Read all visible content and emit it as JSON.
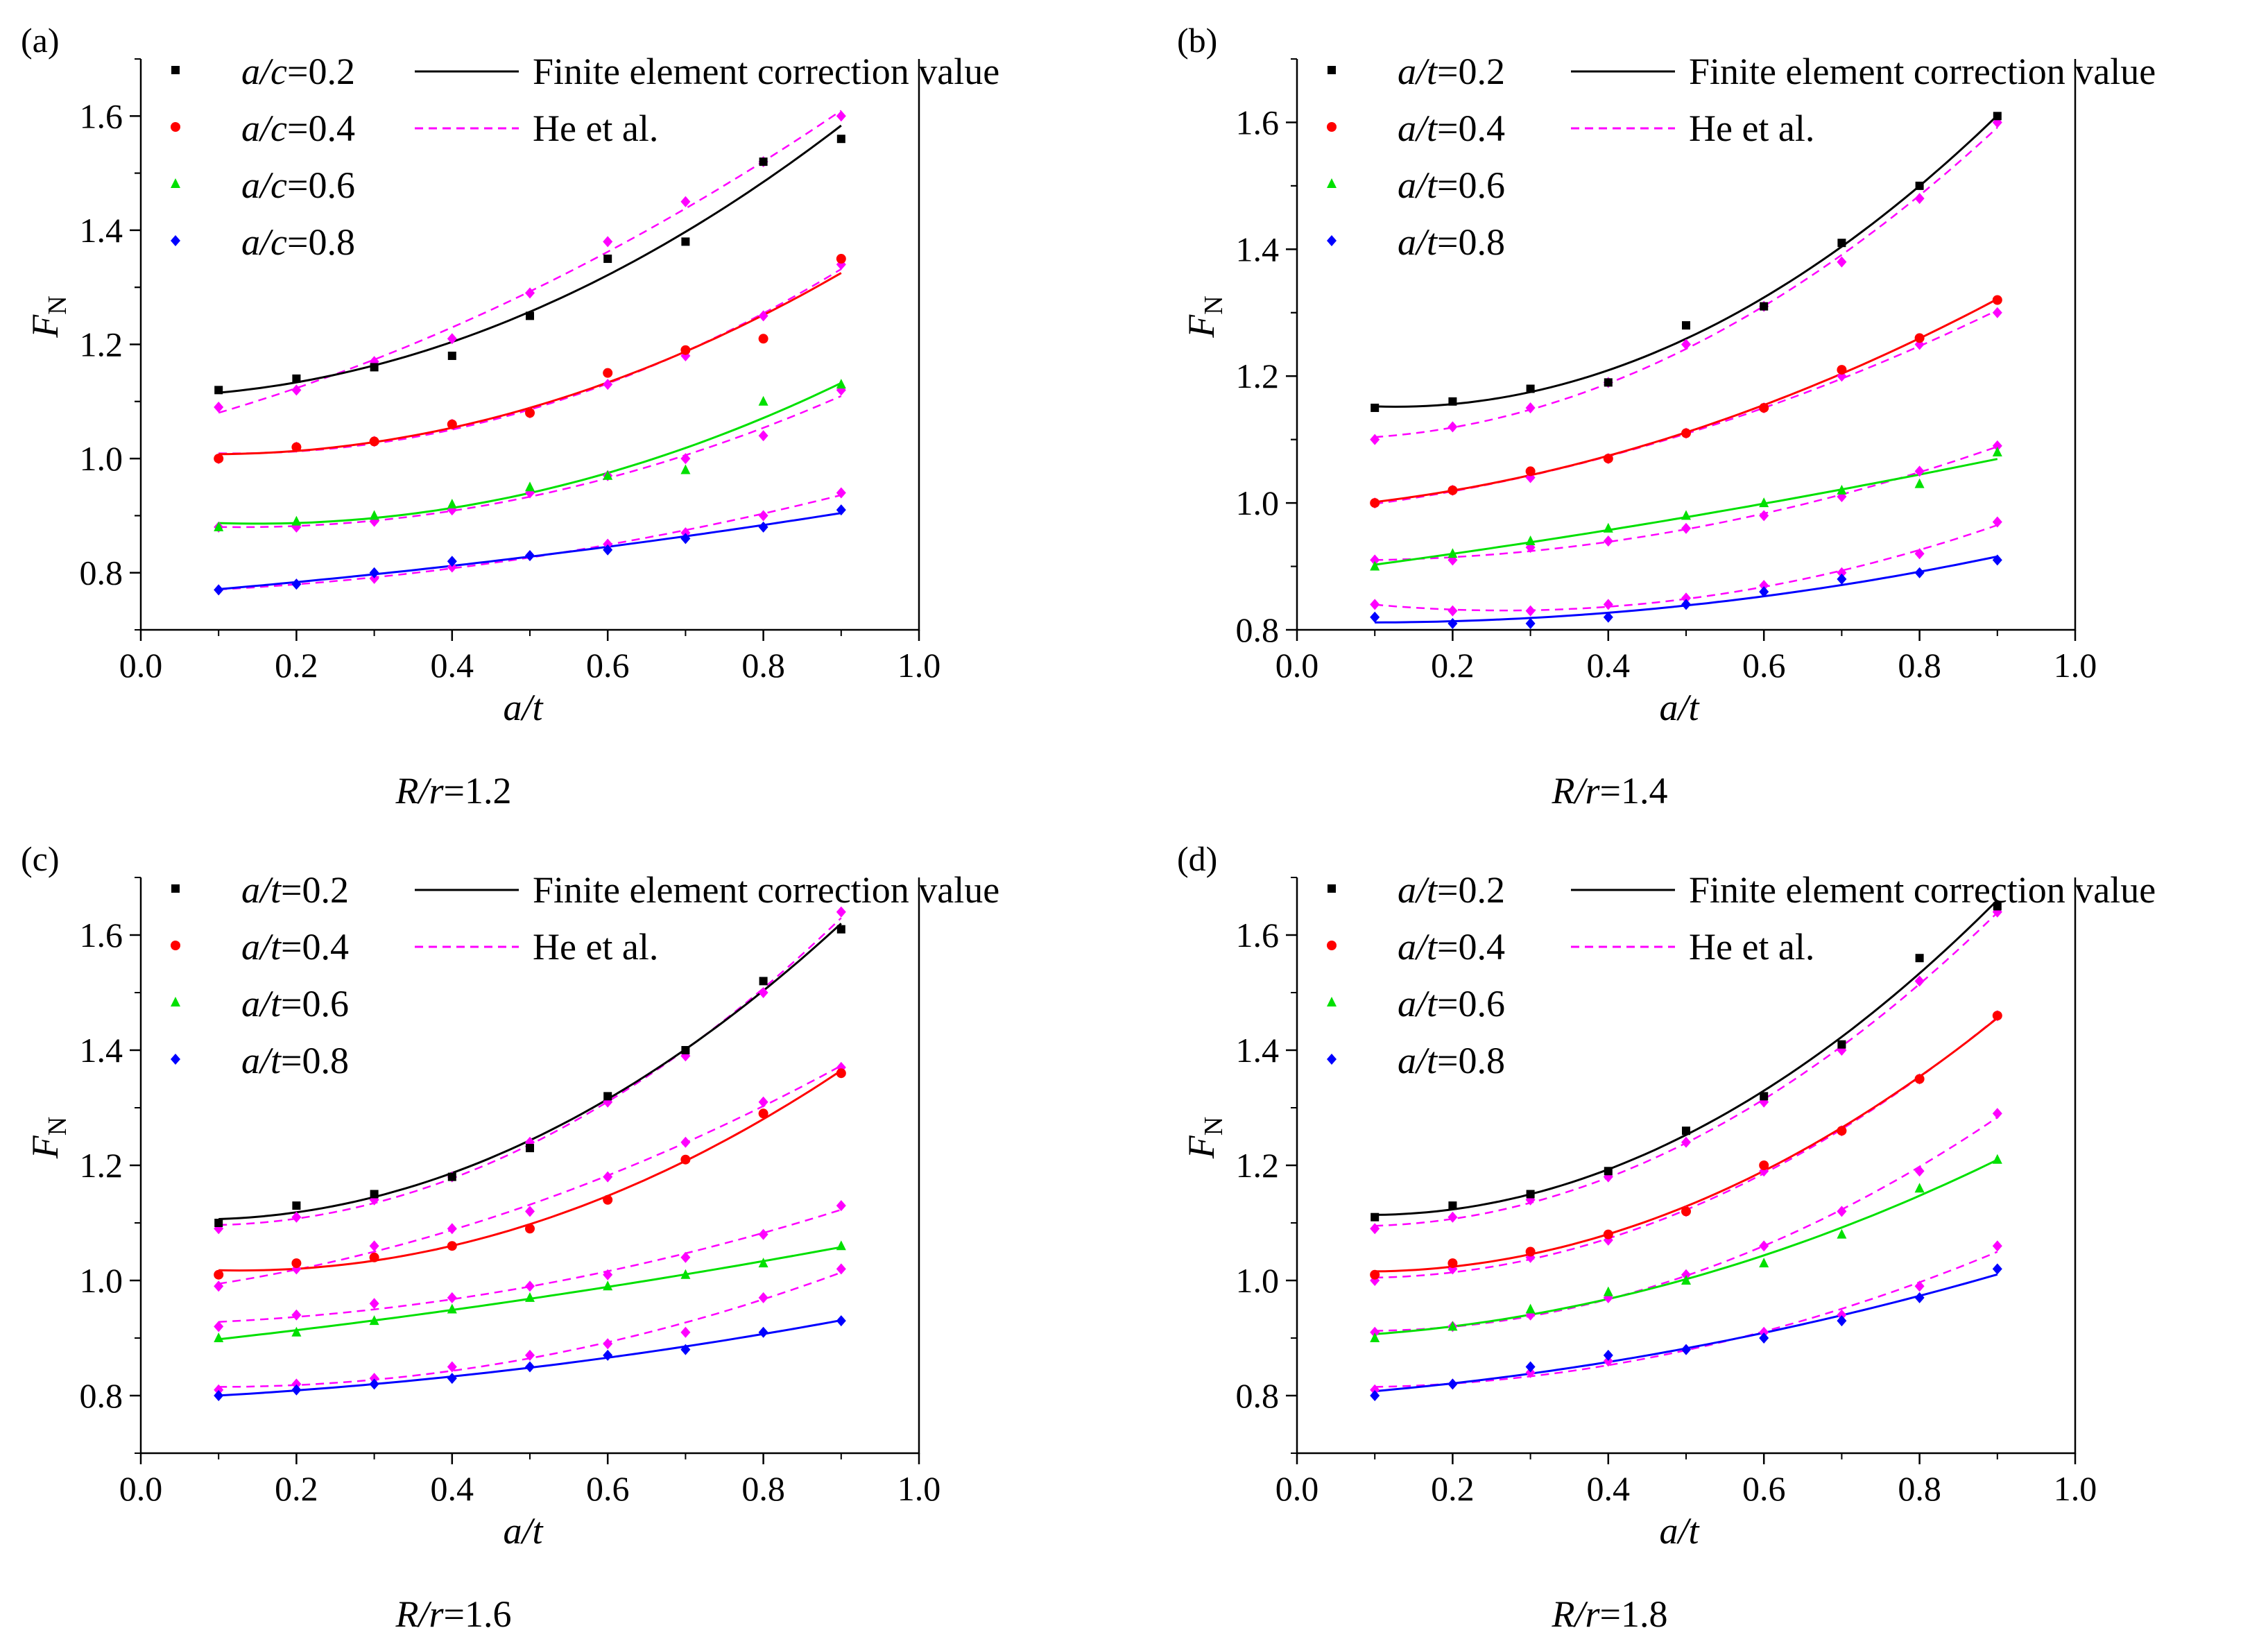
{
  "chart_data": [
    {
      "type": "scatter",
      "panel_label": "(a)",
      "caption_var": "R/r",
      "caption_eq": "=1.2",
      "ylabel_main": "F",
      "ylabel_sub": "N",
      "xlabel": "a/t",
      "xlim": [
        0.0,
        1.0
      ],
      "ylim": [
        0.7,
        1.7
      ],
      "xticks": [
        "0.0",
        "0.2",
        "0.4",
        "0.6",
        "0.8",
        "1.0"
      ],
      "yticks": [
        "0.8",
        "1.0",
        "1.2",
        "1.4",
        "1.6"
      ],
      "ytick_values": [
        0.8,
        1.0,
        1.2,
        1.4,
        1.6
      ],
      "x": [
        0.1,
        0.2,
        0.3,
        0.4,
        0.5,
        0.6,
        0.7,
        0.8,
        0.9
      ],
      "legend": [
        {
          "var": "a/c",
          "eq": "=0.2"
        },
        {
          "var": "a/c",
          "eq": "=0.4"
        },
        {
          "var": "a/c",
          "eq": "=0.6"
        },
        {
          "var": "a/c",
          "eq": "=0.8"
        }
      ],
      "legend_lines": [
        "Finite element correction value",
        "He et al."
      ],
      "series": [
        {
          "name": "0.2",
          "color": "#000000",
          "marker": "square",
          "fe": [
            1.12,
            1.14,
            1.16,
            1.18,
            1.25,
            1.35,
            1.38,
            1.52,
            1.56
          ],
          "he": [
            1.09,
            1.12,
            1.17,
            1.21,
            1.29,
            1.38,
            1.45,
            1.52,
            1.6
          ]
        },
        {
          "name": "0.4",
          "color": "#ff0000",
          "marker": "circle",
          "fe": [
            1.0,
            1.02,
            1.03,
            1.06,
            1.08,
            1.15,
            1.19,
            1.21,
            1.35
          ],
          "he": [
            1.0,
            1.02,
            1.03,
            1.06,
            1.08,
            1.13,
            1.18,
            1.25,
            1.34
          ]
        },
        {
          "name": "0.6",
          "color": "#00e000",
          "marker": "triangle",
          "fe": [
            0.88,
            0.89,
            0.9,
            0.92,
            0.95,
            0.97,
            0.98,
            1.1,
            1.13
          ],
          "he": [
            0.88,
            0.88,
            0.89,
            0.91,
            0.94,
            0.97,
            1.0,
            1.04,
            1.12
          ]
        },
        {
          "name": "0.8",
          "color": "#0000ff",
          "marker": "diamond",
          "fe": [
            0.77,
            0.78,
            0.8,
            0.82,
            0.83,
            0.84,
            0.86,
            0.88,
            0.91
          ],
          "he": [
            0.77,
            0.78,
            0.79,
            0.81,
            0.83,
            0.85,
            0.87,
            0.9,
            0.94
          ]
        }
      ]
    },
    {
      "type": "scatter",
      "panel_label": "(b)",
      "caption_var": "R/r",
      "caption_eq": "=1.4",
      "ylabel_main": "F",
      "ylabel_sub": "N",
      "xlabel": "a/t",
      "xlim": [
        0.0,
        1.0
      ],
      "ylim": [
        0.8,
        1.7
      ],
      "xticks": [
        "0.0",
        "0.2",
        "0.4",
        "0.6",
        "0.8",
        "1.0"
      ],
      "yticks": [
        "0.8",
        "1.0",
        "1.2",
        "1.4",
        "1.6"
      ],
      "ytick_values": [
        0.8,
        1.0,
        1.2,
        1.4,
        1.6
      ],
      "x": [
        0.1,
        0.2,
        0.3,
        0.4,
        0.5,
        0.6,
        0.7,
        0.8,
        0.9
      ],
      "legend": [
        {
          "var": "a/t",
          "eq": "=0.2"
        },
        {
          "var": "a/t",
          "eq": "=0.4"
        },
        {
          "var": "a/t",
          "eq": "=0.6"
        },
        {
          "var": "a/t",
          "eq": "=0.8"
        }
      ],
      "legend_lines": [
        "Finite element correction value",
        "He et al."
      ],
      "series": [
        {
          "name": "0.2",
          "color": "#000000",
          "marker": "square",
          "fe": [
            1.15,
            1.16,
            1.18,
            1.19,
            1.28,
            1.31,
            1.41,
            1.5,
            1.61
          ],
          "he": [
            1.1,
            1.12,
            1.15,
            1.19,
            1.25,
            1.31,
            1.38,
            1.48,
            1.6
          ]
        },
        {
          "name": "0.4",
          "color": "#ff0000",
          "marker": "circle",
          "fe": [
            1.0,
            1.02,
            1.05,
            1.07,
            1.11,
            1.15,
            1.21,
            1.26,
            1.32
          ],
          "he": [
            1.0,
            1.02,
            1.04,
            1.07,
            1.11,
            1.15,
            1.2,
            1.25,
            1.3
          ]
        },
        {
          "name": "0.6",
          "color": "#00e000",
          "marker": "triangle",
          "fe": [
            0.9,
            0.92,
            0.94,
            0.96,
            0.98,
            1.0,
            1.02,
            1.03,
            1.08
          ],
          "he": [
            0.91,
            0.91,
            0.93,
            0.94,
            0.96,
            0.98,
            1.01,
            1.05,
            1.09
          ]
        },
        {
          "name": "0.8",
          "color": "#0000ff",
          "marker": "diamond",
          "fe": [
            0.82,
            0.81,
            0.81,
            0.82,
            0.84,
            0.86,
            0.88,
            0.89,
            0.91
          ],
          "he": [
            0.84,
            0.83,
            0.83,
            0.84,
            0.85,
            0.87,
            0.89,
            0.92,
            0.97
          ]
        }
      ]
    },
    {
      "type": "scatter",
      "panel_label": "(c)",
      "caption_var": "R/r",
      "caption_eq": "=1.6",
      "ylabel_main": "F",
      "ylabel_sub": "N",
      "xlabel": "a/t",
      "xlim": [
        0.0,
        1.0
      ],
      "ylim": [
        0.7,
        1.7
      ],
      "xticks": [
        "0.0",
        "0.2",
        "0.4",
        "0.6",
        "0.8",
        "1.0"
      ],
      "yticks": [
        "0.8",
        "1.0",
        "1.2",
        "1.4",
        "1.6"
      ],
      "ytick_values": [
        0.8,
        1.0,
        1.2,
        1.4,
        1.6
      ],
      "x": [
        0.1,
        0.2,
        0.3,
        0.4,
        0.5,
        0.6,
        0.7,
        0.8,
        0.9
      ],
      "legend": [
        {
          "var": "a/t",
          "eq": "=0.2"
        },
        {
          "var": "a/t",
          "eq": "=0.4"
        },
        {
          "var": "a/t",
          "eq": "=0.6"
        },
        {
          "var": "a/t",
          "eq": "=0.8"
        }
      ],
      "legend_lines": [
        "Finite element correction value",
        "He et al."
      ],
      "series": [
        {
          "name": "0.2",
          "color": "#000000",
          "marker": "square",
          "fe": [
            1.1,
            1.13,
            1.15,
            1.18,
            1.23,
            1.32,
            1.4,
            1.52,
            1.61
          ],
          "he": [
            1.09,
            1.11,
            1.14,
            1.18,
            1.24,
            1.31,
            1.39,
            1.5,
            1.64
          ]
        },
        {
          "name": "0.4",
          "color": "#ff0000",
          "marker": "circle",
          "fe": [
            1.01,
            1.03,
            1.04,
            1.06,
            1.09,
            1.14,
            1.21,
            1.29,
            1.36
          ],
          "he": [
            0.99,
            1.02,
            1.06,
            1.09,
            1.12,
            1.18,
            1.24,
            1.31,
            1.37
          ]
        },
        {
          "name": "0.6",
          "color": "#00e000",
          "marker": "triangle",
          "fe": [
            0.9,
            0.91,
            0.93,
            0.95,
            0.97,
            0.99,
            1.01,
            1.03,
            1.06
          ],
          "he": [
            0.92,
            0.94,
            0.96,
            0.97,
            0.99,
            1.01,
            1.04,
            1.08,
            1.13
          ]
        },
        {
          "name": "0.8",
          "color": "#0000ff",
          "marker": "diamond",
          "fe": [
            0.8,
            0.81,
            0.82,
            0.83,
            0.85,
            0.87,
            0.88,
            0.91,
            0.93
          ],
          "he": [
            0.81,
            0.82,
            0.83,
            0.85,
            0.87,
            0.89,
            0.91,
            0.97,
            1.02
          ]
        }
      ]
    },
    {
      "type": "scatter",
      "panel_label": "(d)",
      "caption_var": "R/r",
      "caption_eq": "=1.8",
      "ylabel_main": "F",
      "ylabel_sub": "N",
      "xlabel": "a/t",
      "xlim": [
        0.0,
        1.0
      ],
      "ylim": [
        0.7,
        1.7
      ],
      "xticks": [
        "0.0",
        "0.2",
        "0.4",
        "0.6",
        "0.8",
        "1.0"
      ],
      "yticks": [
        "0.8",
        "1.0",
        "1.2",
        "1.4",
        "1.6"
      ],
      "ytick_values": [
        0.8,
        1.0,
        1.2,
        1.4,
        1.6
      ],
      "x": [
        0.1,
        0.2,
        0.3,
        0.4,
        0.5,
        0.6,
        0.7,
        0.8,
        0.9
      ],
      "legend": [
        {
          "var": "a/t",
          "eq": "=0.2"
        },
        {
          "var": "a/t",
          "eq": "=0.4"
        },
        {
          "var": "a/t",
          "eq": "=0.6"
        },
        {
          "var": "a/t",
          "eq": "=0.8"
        }
      ],
      "legend_lines": [
        "Finite element correction value",
        "He et al."
      ],
      "series": [
        {
          "name": "0.2",
          "color": "#000000",
          "marker": "square",
          "fe": [
            1.11,
            1.13,
            1.15,
            1.19,
            1.26,
            1.32,
            1.41,
            1.56,
            1.65
          ],
          "he": [
            1.09,
            1.11,
            1.14,
            1.18,
            1.24,
            1.31,
            1.4,
            1.52,
            1.64
          ]
        },
        {
          "name": "0.4",
          "color": "#ff0000",
          "marker": "circle",
          "fe": [
            1.01,
            1.03,
            1.05,
            1.08,
            1.12,
            1.2,
            1.26,
            1.35,
            1.46
          ],
          "he": [
            1.0,
            1.02,
            1.04,
            1.07,
            1.12,
            1.19,
            1.26,
            1.35,
            1.46
          ]
        },
        {
          "name": "0.6",
          "color": "#00e000",
          "marker": "triangle",
          "fe": [
            0.9,
            0.92,
            0.95,
            0.98,
            1.0,
            1.03,
            1.08,
            1.16,
            1.21
          ],
          "he": [
            0.91,
            0.92,
            0.94,
            0.97,
            1.01,
            1.06,
            1.12,
            1.19,
            1.29
          ]
        },
        {
          "name": "0.8",
          "color": "#0000ff",
          "marker": "diamond",
          "fe": [
            0.8,
            0.82,
            0.85,
            0.87,
            0.88,
            0.9,
            0.93,
            0.97,
            1.02
          ],
          "he": [
            0.81,
            0.82,
            0.84,
            0.86,
            0.88,
            0.91,
            0.94,
            0.99,
            1.06
          ]
        }
      ]
    }
  ]
}
